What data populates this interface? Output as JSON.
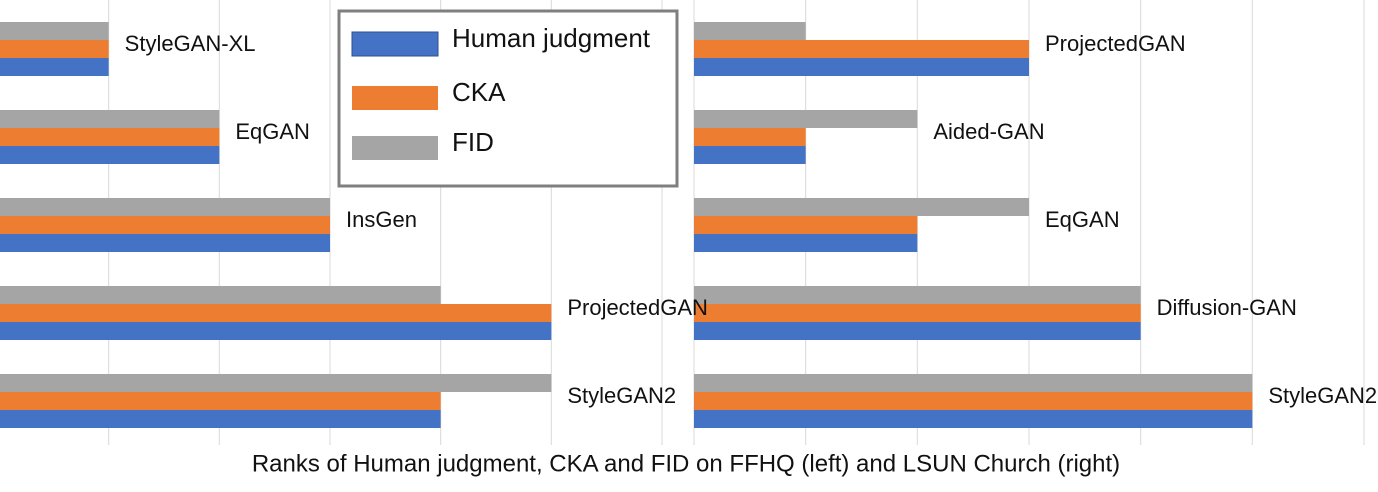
{
  "title": "Ranks of Human judgment, CKA and FID on FFHQ (left) and LSUN Church (right)",
  "chart_data": [
    {
      "type": "bar",
      "orientation": "horizontal",
      "legend": "top-right",
      "categories": [
        "StyleGAN-XL",
        "EqGAN",
        "InsGen",
        "ProjectedGAN",
        "StyleGAN2"
      ],
      "xlim": [
        0,
        6
      ],
      "xticks": [
        1,
        2,
        3,
        4,
        5,
        6
      ],
      "grid": true,
      "series": [
        {
          "name": "Human judgment",
          "color": "#4472c4",
          "values": [
            1,
            2,
            3,
            5,
            4
          ]
        },
        {
          "name": "CKA",
          "color": "#ed7d31",
          "values": [
            1,
            2,
            3,
            5,
            4
          ]
        },
        {
          "name": "FID",
          "color": "#a5a5a5",
          "values": [
            1,
            2,
            3,
            4,
            5
          ]
        }
      ]
    },
    {
      "type": "bar",
      "orientation": "horizontal",
      "categories": [
        "ProjectedGAN",
        "Aided-GAN",
        "EqGAN",
        "Diffusion-GAN",
        "StyleGAN2"
      ],
      "xlim": [
        0,
        6
      ],
      "xticks": [
        1,
        2,
        3,
        4,
        5,
        6
      ],
      "grid": true,
      "series": [
        {
          "color": "#4472c4",
          "values": [
            3,
            1,
            2,
            4,
            5
          ]
        },
        {
          "color": "#ed7d31",
          "values": [
            3,
            1,
            2,
            4,
            5
          ]
        },
        {
          "color": "#a5a5a5",
          "values": [
            1,
            2,
            3,
            4,
            5
          ]
        }
      ]
    }
  ]
}
